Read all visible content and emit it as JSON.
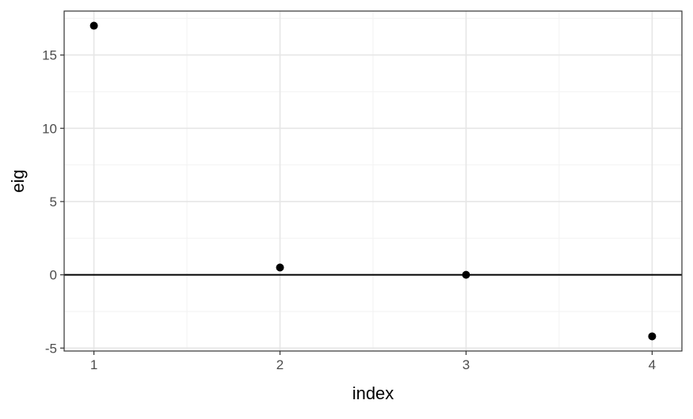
{
  "chart_data": {
    "type": "scatter",
    "title": "",
    "xlabel": "index",
    "ylabel": "eig",
    "x": [
      1,
      2,
      3,
      4
    ],
    "y": [
      17.0,
      0.5,
      0.0,
      -4.2
    ],
    "xlim": [
      0.84,
      4.16
    ],
    "ylim": [
      -5.2,
      18.0
    ],
    "x_ticks": [
      1,
      2,
      3,
      4
    ],
    "x_tick_labels": [
      "1",
      "2",
      "3",
      "4"
    ],
    "y_ticks": [
      -5,
      0,
      5,
      10,
      15
    ],
    "y_tick_labels": [
      "-5",
      "0",
      "5",
      "10",
      "15"
    ],
    "hline": 0,
    "grid": true,
    "theme": "bw",
    "point_color": "#000000",
    "grid_major_color": "#e6e6e6",
    "grid_minor_color": "#f2f2f2",
    "panel_border_color": "#333333"
  }
}
